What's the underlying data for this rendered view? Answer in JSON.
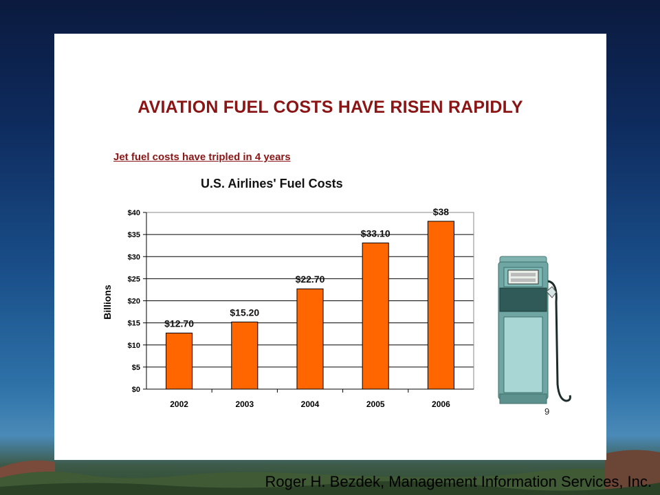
{
  "slide": {
    "title": "AVIATION FUEL COSTS HAVE RISEN RAPIDLY",
    "subtitle": "Jet fuel costs have tripled in 4 years",
    "page_number": "9"
  },
  "footer": {
    "credit": "Roger H. Bezdek, Management Information Services, Inc."
  },
  "chart_data": {
    "type": "bar",
    "title": "U.S. Airlines' Fuel Costs",
    "xlabel": "",
    "ylabel": "Billions",
    "categories": [
      "2002",
      "2003",
      "2004",
      "2005",
      "2006"
    ],
    "values": [
      12.7,
      15.2,
      22.7,
      33.1,
      38
    ],
    "data_labels": [
      "$12.70",
      "$15.20",
      "$22.70",
      "$33.10",
      "$38"
    ],
    "ylim": [
      0,
      40
    ],
    "yticks": [
      0,
      5,
      10,
      15,
      20,
      25,
      30,
      35,
      40
    ],
    "ytick_labels": [
      "$0",
      "$5",
      "$10",
      "$15",
      "$20",
      "$25",
      "$30",
      "$35",
      "$40"
    ],
    "grid": true,
    "bar_color": "#ff6600",
    "legend": "none"
  },
  "colors": {
    "title": "#8b1414",
    "bar": "#ff6600"
  },
  "icons": {
    "illustration": "fuel-pump-icon"
  }
}
